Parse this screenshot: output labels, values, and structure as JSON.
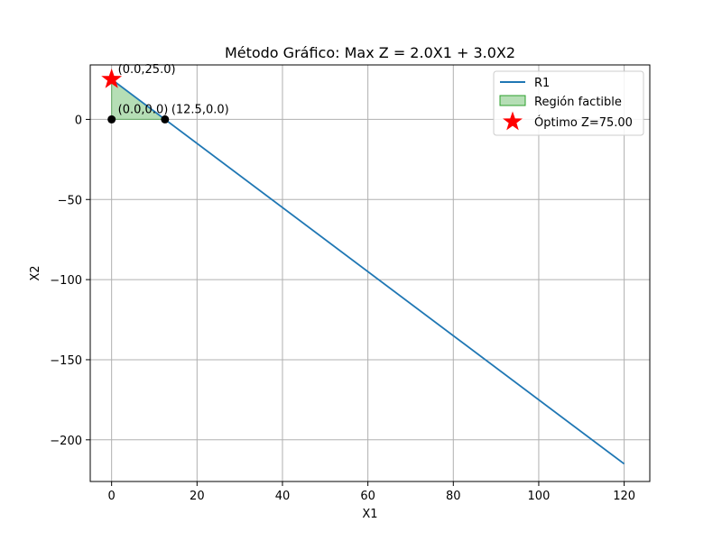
{
  "chart_data": {
    "type": "line",
    "title": "Método Gráfico: Max Z = 2.0X1 + 3.0X2",
    "xlabel": "X1",
    "ylabel": "X2",
    "xlim": [
      -5,
      126
    ],
    "ylim": [
      -226,
      34
    ],
    "xticks": [
      0,
      20,
      40,
      60,
      80,
      100,
      120
    ],
    "yticks": [
      -200,
      -150,
      -100,
      -50,
      0
    ],
    "xtick_labels": [
      "0",
      "20",
      "40",
      "60",
      "80",
      "100",
      "120"
    ],
    "ytick_labels": [
      "−200",
      "−150",
      "−100",
      "−50",
      "0"
    ],
    "grid": true,
    "legend_position": "top-right",
    "series": [
      {
        "name": "R1",
        "type": "line",
        "color": "#1f77b4",
        "x": [
          0,
          120
        ],
        "y": [
          25,
          -215
        ]
      }
    ],
    "feasible_region": {
      "name": "Región factible",
      "color": "#2ca02c",
      "opacity": 0.35,
      "vertices": [
        [
          0,
          0
        ],
        [
          12.5,
          0
        ],
        [
          0,
          25
        ]
      ]
    },
    "vertices": [
      {
        "x": 0,
        "y": 0,
        "label": "(0.0,0.0)"
      },
      {
        "x": 12.5,
        "y": 0,
        "label": "(12.5,0.0)"
      },
      {
        "x": 0,
        "y": 25,
        "label": "(0.0,25.0)"
      }
    ],
    "optimum": {
      "name": "Óptimo Z=75.00",
      "x": 0,
      "y": 25,
      "color": "#ff0000",
      "marker": "star"
    }
  }
}
